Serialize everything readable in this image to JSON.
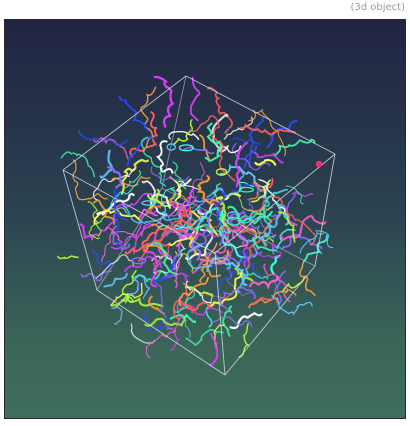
{
  "caption": "(3d object)",
  "viewer": {
    "background_top": "#212442",
    "background_bottom": "#3f6e5c",
    "box_edge_color": "#d8dbe4",
    "strand_colors": [
      "#3ff5a8",
      "#ff5fd2",
      "#ffffff",
      "#b6ff3c",
      "#5ec8ff",
      "#ff9f3c",
      "#ffff5a",
      "#8f6bff",
      "#ff5f5f",
      "#40ffe6",
      "#2a4cff",
      "#e040ff"
    ],
    "marker_color": "#ff2a6b"
  }
}
